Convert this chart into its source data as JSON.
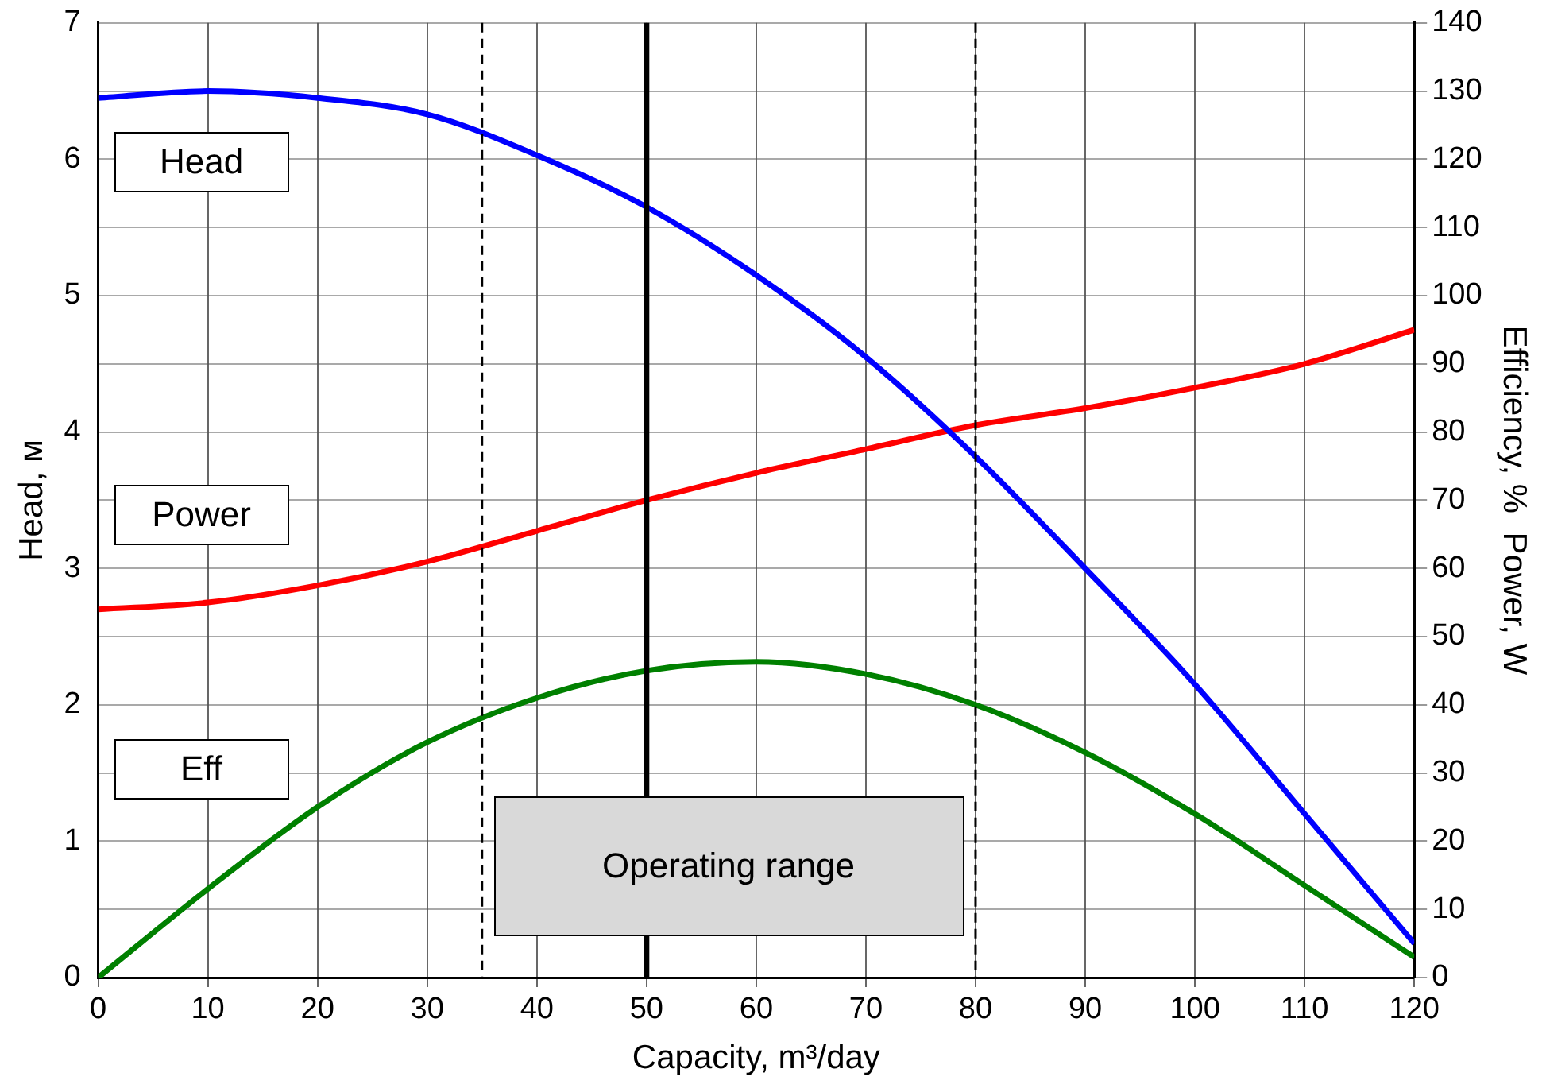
{
  "chart_data": {
    "type": "line",
    "xlabel": "Capacity, m³/day",
    "ylabel": "Head, м",
    "y2label": "Efficiency, %  Power, W",
    "x": [
      0,
      10,
      20,
      30,
      40,
      50,
      60,
      70,
      80,
      90,
      100,
      110,
      120
    ],
    "series": [
      {
        "name": "Head",
        "color": "#0000ff",
        "values": [
          6.45,
          6.5,
          6.45,
          6.33,
          6.03,
          5.65,
          5.15,
          4.55,
          3.82,
          3.0,
          2.15,
          1.2,
          0.25
        ]
      },
      {
        "name": "Power",
        "color": "#ff0000",
        "axis": "y2",
        "values": [
          54,
          55,
          57.5,
          61,
          65.5,
          70,
          74,
          77.5,
          81,
          83.5,
          86.5,
          90,
          95
        ]
      },
      {
        "name": "Eff",
        "color": "#008000",
        "axis": "y2",
        "values": [
          0,
          13,
          25,
          34.5,
          41,
          45,
          46.3,
          44.5,
          40,
          33,
          24,
          13.5,
          3
        ]
      }
    ],
    "xlim": [
      0,
      120
    ],
    "xticks": [
      0,
      10,
      20,
      30,
      40,
      50,
      60,
      70,
      80,
      90,
      100,
      110,
      120
    ],
    "ylim": [
      0,
      7
    ],
    "yticks": [
      0,
      1,
      2,
      3,
      4,
      5,
      6,
      7
    ],
    "y2lim": [
      0,
      140
    ],
    "y2ticks": [
      0,
      10,
      20,
      30,
      40,
      50,
      60,
      70,
      80,
      90,
      100,
      110,
      120,
      130,
      140
    ],
    "ref_lines": [
      {
        "axis": "x",
        "value": 35,
        "line_style": "dashed"
      },
      {
        "axis": "x",
        "value": 50,
        "line_style": "solid"
      },
      {
        "axis": "x",
        "value": 80,
        "line_style": "dashed"
      }
    ],
    "annotations": [
      "Operating range"
    ],
    "grid": true,
    "legend": false,
    "marker": "none",
    "line_style": "solid"
  }
}
